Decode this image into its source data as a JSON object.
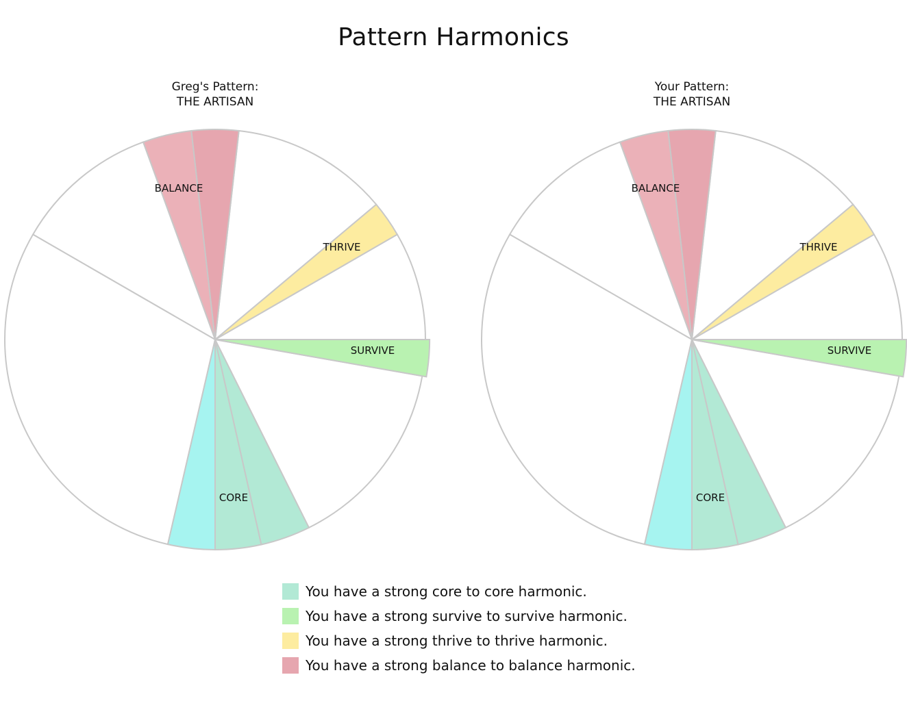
{
  "page": {
    "title": "Pattern Harmonics"
  },
  "colors": {
    "core_a": "#a6f4f0",
    "core_b": "#b2e9d5",
    "survive": "#b9f2b1",
    "thrive": "#fdeca0",
    "balance_a": "#ebb1b8",
    "balance_b": "#e6a6af",
    "empty": "#ffffff",
    "border": "#c8c8c8"
  },
  "chart_data": [
    {
      "type": "pie",
      "title_line1": "Greg's Pattern:",
      "title_line2": "THE ARTISAN",
      "slices": [
        {
          "label": "",
          "start_deg": 0,
          "end_deg": 12.7,
          "color_key": "core_b"
        },
        {
          "label": "",
          "start_deg": 12.7,
          "end_deg": 26.5,
          "color_key": "core_b"
        },
        {
          "label": "",
          "start_deg": 26.5,
          "end_deg": 80,
          "color_key": "empty"
        },
        {
          "label": "SURVIVE",
          "start_deg": 80,
          "end_deg": 90,
          "color_key": "survive"
        },
        {
          "label": "",
          "start_deg": 90,
          "end_deg": 120,
          "color_key": "empty"
        },
        {
          "label": "THRIVE",
          "start_deg": 120,
          "end_deg": 130,
          "color_key": "thrive"
        },
        {
          "label": "",
          "start_deg": 130,
          "end_deg": 173.5,
          "color_key": "empty"
        },
        {
          "label": "",
          "start_deg": 173.5,
          "end_deg": 186.5,
          "color_key": "balance_b"
        },
        {
          "label": "BALANCE",
          "start_deg": 186.5,
          "end_deg": 200,
          "color_key": "balance_a"
        },
        {
          "label": "",
          "start_deg": 200,
          "end_deg": 240,
          "color_key": "empty"
        },
        {
          "label": "",
          "start_deg": 240,
          "end_deg": 347,
          "color_key": "empty"
        },
        {
          "label": "CORE",
          "start_deg": 347,
          "end_deg": 360,
          "color_key": "core_a"
        }
      ],
      "segment_labels": [
        "CORE",
        "SURVIVE",
        "THRIVE",
        "BALANCE"
      ]
    },
    {
      "type": "pie",
      "title_line1": "Your Pattern:",
      "title_line2": "THE ARTISAN",
      "slices": [
        {
          "label": "",
          "start_deg": 0,
          "end_deg": 12.7,
          "color_key": "core_b"
        },
        {
          "label": "",
          "start_deg": 12.7,
          "end_deg": 26.5,
          "color_key": "core_b"
        },
        {
          "label": "",
          "start_deg": 26.5,
          "end_deg": 80,
          "color_key": "empty"
        },
        {
          "label": "SURVIVE",
          "start_deg": 80,
          "end_deg": 90,
          "color_key": "survive"
        },
        {
          "label": "",
          "start_deg": 90,
          "end_deg": 120,
          "color_key": "empty"
        },
        {
          "label": "THRIVE",
          "start_deg": 120,
          "end_deg": 130,
          "color_key": "thrive"
        },
        {
          "label": "",
          "start_deg": 130,
          "end_deg": 173.5,
          "color_key": "empty"
        },
        {
          "label": "",
          "start_deg": 173.5,
          "end_deg": 186.5,
          "color_key": "balance_b"
        },
        {
          "label": "BALANCE",
          "start_deg": 186.5,
          "end_deg": 200,
          "color_key": "balance_a"
        },
        {
          "label": "",
          "start_deg": 200,
          "end_deg": 240,
          "color_key": "empty"
        },
        {
          "label": "",
          "start_deg": 240,
          "end_deg": 347,
          "color_key": "empty"
        },
        {
          "label": "CORE",
          "start_deg": 347,
          "end_deg": 360,
          "color_key": "core_a"
        }
      ],
      "segment_labels": [
        "CORE",
        "SURVIVE",
        "THRIVE",
        "BALANCE"
      ]
    }
  ],
  "legend": [
    {
      "text": "You have a strong core to core harmonic.",
      "color_key": "core_b"
    },
    {
      "text": "You have a strong survive to survive harmonic.",
      "color_key": "survive"
    },
    {
      "text": "You have a strong thrive to thrive harmonic.",
      "color_key": "thrive"
    },
    {
      "text": "You have a strong balance to balance harmonic.",
      "color_key": "balance_b"
    }
  ]
}
